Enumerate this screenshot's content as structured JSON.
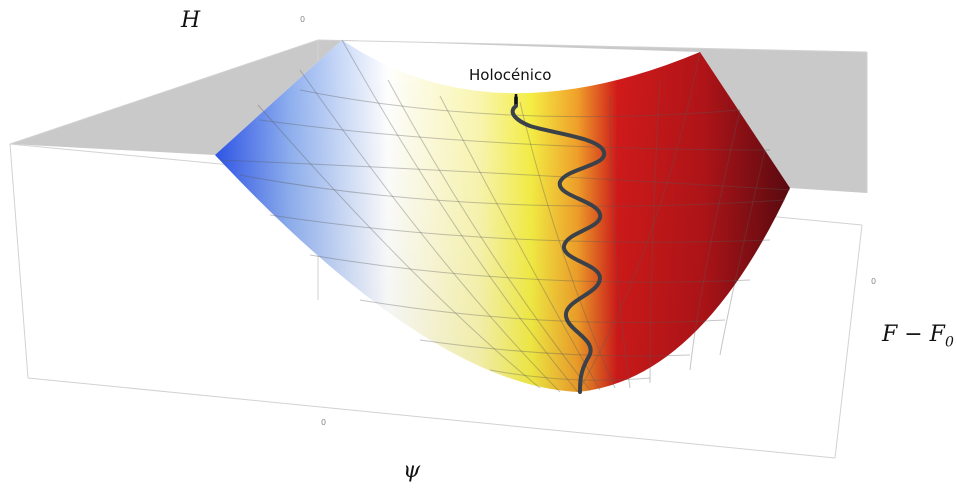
{
  "labels": {
    "z_axis": "H",
    "y_axis": "F − F",
    "y_axis_sub": "0",
    "x_axis": "ψ",
    "trajectory": "Holocénico"
  },
  "ticks": {
    "top": "0",
    "right": "0",
    "bottom": "0"
  },
  "colors": {
    "cold": "#2f55e8",
    "neutral": "#ffffff",
    "warm": "#f6ef45",
    "hot": "#d11a1a",
    "dark": "#5a0a10",
    "plane": "#c9c9c9",
    "trajectory": "#3b4149"
  }
}
